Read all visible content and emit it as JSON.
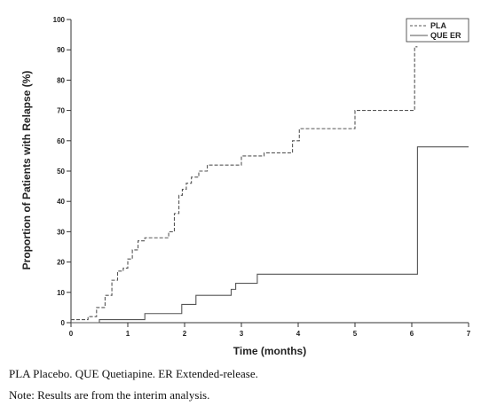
{
  "chart_data": {
    "type": "line",
    "step": true,
    "xlabel": "Time (months)",
    "ylabel": "Proportion of Patients with Relapse (%)",
    "xlim": [
      0,
      7
    ],
    "ylim": [
      0,
      100
    ],
    "x_ticks": [
      0,
      1,
      2,
      3,
      4,
      5,
      6,
      7
    ],
    "y_ticks": [
      0,
      10,
      20,
      30,
      40,
      50,
      60,
      70,
      80,
      90,
      100
    ],
    "grid": false,
    "legend_position": "top-right",
    "series": [
      {
        "name": "PLA",
        "style": "dashed",
        "color": "#555555",
        "points": [
          [
            0,
            1
          ],
          [
            0.3,
            2
          ],
          [
            0.45,
            5
          ],
          [
            0.6,
            9
          ],
          [
            0.72,
            14
          ],
          [
            0.82,
            17
          ],
          [
            0.92,
            18
          ],
          [
            1.0,
            21
          ],
          [
            1.08,
            24
          ],
          [
            1.18,
            27
          ],
          [
            1.3,
            28
          ],
          [
            1.72,
            30
          ],
          [
            1.82,
            36
          ],
          [
            1.9,
            42
          ],
          [
            1.96,
            44
          ],
          [
            2.03,
            46
          ],
          [
            2.12,
            48
          ],
          [
            2.25,
            50
          ],
          [
            2.4,
            52
          ],
          [
            3.0,
            55
          ],
          [
            3.4,
            56
          ],
          [
            3.9,
            60
          ],
          [
            4.02,
            64
          ],
          [
            5.0,
            70
          ],
          [
            6.05,
            91
          ],
          [
            6.1,
            91
          ]
        ]
      },
      {
        "name": "QUE ER",
        "style": "solid",
        "color": "#555555",
        "points": [
          [
            0,
            0
          ],
          [
            0.5,
            1
          ],
          [
            1.3,
            3
          ],
          [
            1.95,
            6
          ],
          [
            2.2,
            9
          ],
          [
            2.82,
            11
          ],
          [
            2.9,
            13
          ],
          [
            3.28,
            16
          ],
          [
            6.1,
            58
          ],
          [
            7.0,
            58
          ]
        ]
      }
    ]
  },
  "notes": {
    "abbreviations": "PLA Placebo. QUE Quetiapine. ER Extended-release.",
    "interim": "Note: Results are from the interim analysis."
  }
}
